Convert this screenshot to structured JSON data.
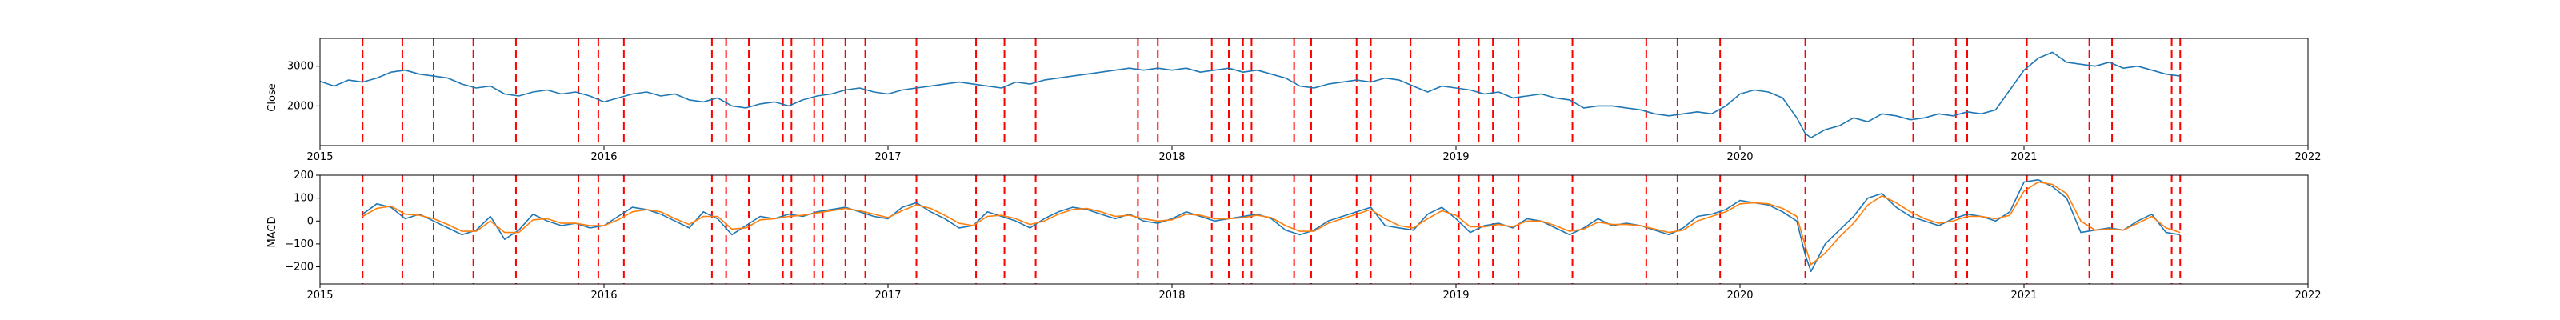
{
  "chart_data": [
    {
      "type": "line",
      "xlabel": "",
      "ylabel": "Close",
      "xlim": [
        2015.0,
        2022.0
      ],
      "ylim": [
        1000,
        3700
      ],
      "x_ticks": [
        2015,
        2016,
        2017,
        2018,
        2019,
        2020,
        2021,
        2022
      ],
      "x_tick_labels": [
        "2015",
        "2016",
        "2017",
        "2018",
        "2019",
        "2020",
        "2021",
        "2022"
      ],
      "y_ticks": [
        2000,
        3000
      ],
      "y_tick_labels": [
        "2000",
        "3000"
      ],
      "grid": false,
      "series": [
        {
          "color": "#1f77b4",
          "x": [
            2015.0,
            2015.05,
            2015.1,
            2015.15,
            2015.2,
            2015.25,
            2015.3,
            2015.35,
            2015.4,
            2015.45,
            2015.5,
            2015.55,
            2015.6,
            2015.65,
            2015.7,
            2015.75,
            2015.8,
            2015.85,
            2015.9,
            2015.95,
            2016.0,
            2016.05,
            2016.1,
            2016.15,
            2016.2,
            2016.25,
            2016.3,
            2016.35,
            2016.4,
            2016.45,
            2016.5,
            2016.55,
            2016.6,
            2016.65,
            2016.7,
            2016.75,
            2016.8,
            2016.85,
            2016.9,
            2016.95,
            2017.0,
            2017.05,
            2017.1,
            2017.15,
            2017.2,
            2017.25,
            2017.3,
            2017.35,
            2017.4,
            2017.45,
            2017.5,
            2017.55,
            2017.6,
            2017.65,
            2017.7,
            2017.75,
            2017.8,
            2017.85,
            2017.9,
            2017.95,
            2018.0,
            2018.05,
            2018.1,
            2018.15,
            2018.2,
            2018.25,
            2018.3,
            2018.35,
            2018.4,
            2018.45,
            2018.5,
            2018.55,
            2018.6,
            2018.65,
            2018.7,
            2018.75,
            2018.8,
            2018.85,
            2018.9,
            2018.95,
            2019.0,
            2019.05,
            2019.1,
            2019.15,
            2019.2,
            2019.25,
            2019.3,
            2019.35,
            2019.4,
            2019.45,
            2019.5,
            2019.55,
            2019.6,
            2019.65,
            2019.7,
            2019.75,
            2019.8,
            2019.85,
            2019.9,
            2019.95,
            2020.0,
            2020.05,
            2020.1,
            2020.15,
            2020.2,
            2020.23,
            2020.25,
            2020.3,
            2020.35,
            2020.4,
            2020.45,
            2020.5,
            2020.55,
            2020.6,
            2020.65,
            2020.7,
            2020.75,
            2020.8,
            2020.85,
            2020.9,
            2020.95,
            2021.0,
            2021.05,
            2021.1,
            2021.15,
            2021.2,
            2021.25,
            2021.3,
            2021.35,
            2021.4,
            2021.45,
            2021.5,
            2021.55
          ],
          "y": [
            2620,
            2500,
            2650,
            2600,
            2700,
            2850,
            2900,
            2800,
            2750,
            2700,
            2550,
            2450,
            2500,
            2300,
            2250,
            2350,
            2400,
            2300,
            2350,
            2250,
            2100,
            2200,
            2300,
            2350,
            2250,
            2300,
            2150,
            2100,
            2200,
            2000,
            1950,
            2050,
            2100,
            2000,
            2150,
            2250,
            2300,
            2400,
            2450,
            2350,
            2300,
            2400,
            2450,
            2500,
            2550,
            2600,
            2550,
            2500,
            2450,
            2600,
            2550,
            2650,
            2700,
            2750,
            2800,
            2850,
            2900,
            2950,
            2900,
            2950,
            2900,
            2950,
            2850,
            2900,
            2950,
            2850,
            2900,
            2800,
            2700,
            2500,
            2450,
            2550,
            2600,
            2650,
            2600,
            2700,
            2650,
            2500,
            2350,
            2500,
            2450,
            2400,
            2300,
            2350,
            2200,
            2250,
            2300,
            2200,
            2150,
            1950,
            2000,
            2000,
            1950,
            1900,
            1800,
            1750,
            1800,
            1850,
            1800,
            2000,
            2300,
            2400,
            2350,
            2200,
            1700,
            1300,
            1200,
            1400,
            1500,
            1700,
            1600,
            1800,
            1750,
            1650,
            1700,
            1800,
            1750,
            1850,
            1800,
            1900,
            2400,
            2900,
            3200,
            3350,
            3100,
            3050,
            3000,
            3100,
            2950,
            3000,
            2900,
            2800,
            2750
          ]
        }
      ],
      "vlines": {
        "color": "#ff0000",
        "x": [
          2015.15,
          2015.29,
          2015.4,
          2015.54,
          2015.69,
          2015.91,
          2015.98,
          2016.07,
          2016.38,
          2016.43,
          2016.51,
          2016.63,
          2016.66,
          2016.74,
          2016.77,
          2016.85,
          2016.92,
          2017.1,
          2017.31,
          2017.41,
          2017.52,
          2017.88,
          2017.95,
          2018.14,
          2018.2,
          2018.25,
          2018.28,
          2018.43,
          2018.49,
          2018.65,
          2018.7,
          2018.84,
          2019.01,
          2019.08,
          2019.13,
          2019.22,
          2019.41,
          2019.67,
          2019.78,
          2019.93,
          2020.23,
          2020.61,
          2020.76,
          2020.8,
          2021.01,
          2021.23,
          2021.31,
          2021.52,
          2021.55
        ]
      }
    },
    {
      "type": "line",
      "xlabel": "",
      "ylabel": "MACD",
      "xlim": [
        2015.0,
        2022.0
      ],
      "ylim": [
        -275,
        200
      ],
      "x_ticks": [
        2015,
        2016,
        2017,
        2018,
        2019,
        2020,
        2021,
        2022
      ],
      "x_tick_labels": [
        "2015",
        "2016",
        "2017",
        "2018",
        "2019",
        "2020",
        "2021",
        "2022"
      ],
      "y_ticks": [
        -200,
        -100,
        0,
        100,
        200
      ],
      "y_tick_labels": [
        "−200",
        "−100",
        "0",
        "100",
        "200"
      ],
      "grid": false,
      "series": [
        {
          "color": "#1f77b4",
          "x": [
            2015.15,
            2015.2,
            2015.25,
            2015.3,
            2015.35,
            2015.4,
            2015.45,
            2015.5,
            2015.55,
            2015.6,
            2015.65,
            2015.7,
            2015.75,
            2015.8,
            2015.85,
            2015.9,
            2015.95,
            2016.0,
            2016.05,
            2016.1,
            2016.15,
            2016.2,
            2016.25,
            2016.3,
            2016.35,
            2016.4,
            2016.45,
            2016.5,
            2016.55,
            2016.6,
            2016.65,
            2016.7,
            2016.75,
            2016.8,
            2016.85,
            2016.9,
            2016.95,
            2017.0,
            2017.05,
            2017.1,
            2017.15,
            2017.2,
            2017.25,
            2017.3,
            2017.35,
            2017.4,
            2017.45,
            2017.5,
            2017.55,
            2017.6,
            2017.65,
            2017.7,
            2017.75,
            2017.8,
            2017.85,
            2017.9,
            2017.95,
            2018.0,
            2018.05,
            2018.1,
            2018.15,
            2018.2,
            2018.25,
            2018.3,
            2018.35,
            2018.4,
            2018.45,
            2018.5,
            2018.55,
            2018.6,
            2018.65,
            2018.7,
            2018.75,
            2018.8,
            2018.85,
            2018.9,
            2018.95,
            2019.0,
            2019.05,
            2019.1,
            2019.15,
            2019.2,
            2019.25,
            2019.3,
            2019.35,
            2019.4,
            2019.45,
            2019.5,
            2019.55,
            2019.6,
            2019.65,
            2019.7,
            2019.75,
            2019.8,
            2019.85,
            2019.9,
            2019.95,
            2020.0,
            2020.05,
            2020.1,
            2020.15,
            2020.2,
            2020.23,
            2020.25,
            2020.3,
            2020.35,
            2020.4,
            2020.45,
            2020.5,
            2020.55,
            2020.6,
            2020.65,
            2020.7,
            2020.75,
            2020.8,
            2020.85,
            2020.9,
            2020.95,
            2021.0,
            2021.05,
            2021.1,
            2021.15,
            2021.2,
            2021.25,
            2021.3,
            2021.35,
            2021.4,
            2021.45,
            2021.5,
            2021.55
          ],
          "y": [
            30,
            75,
            60,
            10,
            30,
            0,
            -30,
            -60,
            -40,
            20,
            -80,
            -40,
            30,
            0,
            -20,
            -10,
            -30,
            -20,
            20,
            60,
            50,
            30,
            0,
            -30,
            40,
            10,
            -60,
            -20,
            20,
            10,
            30,
            20,
            40,
            50,
            60,
            40,
            20,
            10,
            60,
            80,
            40,
            10,
            -30,
            -20,
            40,
            20,
            0,
            -30,
            10,
            40,
            60,
            50,
            30,
            10,
            30,
            0,
            -10,
            10,
            40,
            20,
            0,
            10,
            20,
            30,
            10,
            -40,
            -60,
            -40,
            0,
            20,
            40,
            60,
            -20,
            -30,
            -40,
            30,
            60,
            10,
            -50,
            -20,
            -10,
            -30,
            10,
            0,
            -30,
            -60,
            -30,
            10,
            -20,
            -10,
            -20,
            -40,
            -60,
            -30,
            20,
            30,
            50,
            90,
            80,
            70,
            40,
            0,
            -150,
            -220,
            -100,
            -40,
            20,
            100,
            120,
            60,
            20,
            0,
            -20,
            10,
            30,
            20,
            0,
            40,
            170,
            180,
            150,
            100,
            -50,
            -40,
            -30,
            -40,
            0,
            30,
            -50,
            -60
          ]
        },
        {
          "color": "#ff7f0e",
          "x": [
            2015.15,
            2015.2,
            2015.25,
            2015.3,
            2015.35,
            2015.4,
            2015.45,
            2015.5,
            2015.55,
            2015.6,
            2015.65,
            2015.7,
            2015.75,
            2015.8,
            2015.85,
            2015.9,
            2015.95,
            2016.0,
            2016.05,
            2016.1,
            2016.15,
            2016.2,
            2016.25,
            2016.3,
            2016.35,
            2016.4,
            2016.45,
            2016.5,
            2016.55,
            2016.6,
            2016.65,
            2016.7,
            2016.75,
            2016.8,
            2016.85,
            2016.9,
            2016.95,
            2017.0,
            2017.05,
            2017.1,
            2017.15,
            2017.2,
            2017.25,
            2017.3,
            2017.35,
            2017.4,
            2017.45,
            2017.5,
            2017.55,
            2017.6,
            2017.65,
            2017.7,
            2017.75,
            2017.8,
            2017.85,
            2017.9,
            2017.95,
            2018.0,
            2018.05,
            2018.1,
            2018.15,
            2018.2,
            2018.25,
            2018.3,
            2018.35,
            2018.4,
            2018.45,
            2018.5,
            2018.55,
            2018.6,
            2018.65,
            2018.7,
            2018.75,
            2018.8,
            2018.85,
            2018.9,
            2018.95,
            2019.0,
            2019.05,
            2019.1,
            2019.15,
            2019.2,
            2019.25,
            2019.3,
            2019.35,
            2019.4,
            2019.45,
            2019.5,
            2019.55,
            2019.6,
            2019.65,
            2019.7,
            2019.75,
            2019.8,
            2019.85,
            2019.9,
            2019.95,
            2020.0,
            2020.05,
            2020.1,
            2020.15,
            2020.2,
            2020.23,
            2020.25,
            2020.3,
            2020.35,
            2020.4,
            2020.45,
            2020.5,
            2020.55,
            2020.6,
            2020.65,
            2020.7,
            2020.75,
            2020.8,
            2020.85,
            2020.9,
            2020.95,
            2021.0,
            2021.05,
            2021.1,
            2021.15,
            2021.2,
            2021.25,
            2021.3,
            2021.35,
            2021.4,
            2021.45,
            2021.5,
            2021.55
          ],
          "y": [
            20,
            55,
            65,
            30,
            25,
            10,
            -15,
            -45,
            -45,
            0,
            -50,
            -50,
            5,
            10,
            -10,
            -10,
            -20,
            -20,
            5,
            40,
            50,
            40,
            10,
            -15,
            20,
            20,
            -35,
            -30,
            5,
            10,
            20,
            25,
            35,
            45,
            55,
            45,
            30,
            15,
            45,
            70,
            55,
            25,
            -10,
            -20,
            20,
            25,
            10,
            -15,
            0,
            30,
            50,
            55,
            40,
            20,
            25,
            10,
            0,
            5,
            30,
            25,
            10,
            10,
            15,
            25,
            15,
            -20,
            -45,
            -45,
            -10,
            10,
            30,
            50,
            10,
            -20,
            -30,
            10,
            45,
            25,
            -25,
            -25,
            -15,
            -25,
            0,
            0,
            -20,
            -45,
            -35,
            -5,
            -15,
            -15,
            -20,
            -35,
            -50,
            -40,
            0,
            20,
            40,
            75,
            80,
            75,
            55,
            20,
            -110,
            -190,
            -140,
            -70,
            -10,
            70,
            110,
            80,
            40,
            10,
            -10,
            0,
            20,
            20,
            10,
            25,
            130,
            170,
            160,
            120,
            0,
            -40,
            -35,
            -40,
            -10,
            20,
            -30,
            -50
          ]
        }
      ],
      "vlines": {
        "color": "#ff0000",
        "x": [
          2015.15,
          2015.29,
          2015.4,
          2015.54,
          2015.69,
          2015.91,
          2015.98,
          2016.07,
          2016.38,
          2016.43,
          2016.51,
          2016.63,
          2016.66,
          2016.74,
          2016.77,
          2016.85,
          2016.92,
          2017.1,
          2017.31,
          2017.41,
          2017.52,
          2017.88,
          2017.95,
          2018.14,
          2018.2,
          2018.25,
          2018.28,
          2018.43,
          2018.49,
          2018.65,
          2018.7,
          2018.84,
          2019.01,
          2019.08,
          2019.13,
          2019.22,
          2019.41,
          2019.67,
          2019.78,
          2019.93,
          2020.23,
          2020.61,
          2020.76,
          2020.8,
          2021.01,
          2021.23,
          2021.31,
          2021.52,
          2021.55
        ]
      }
    }
  ]
}
